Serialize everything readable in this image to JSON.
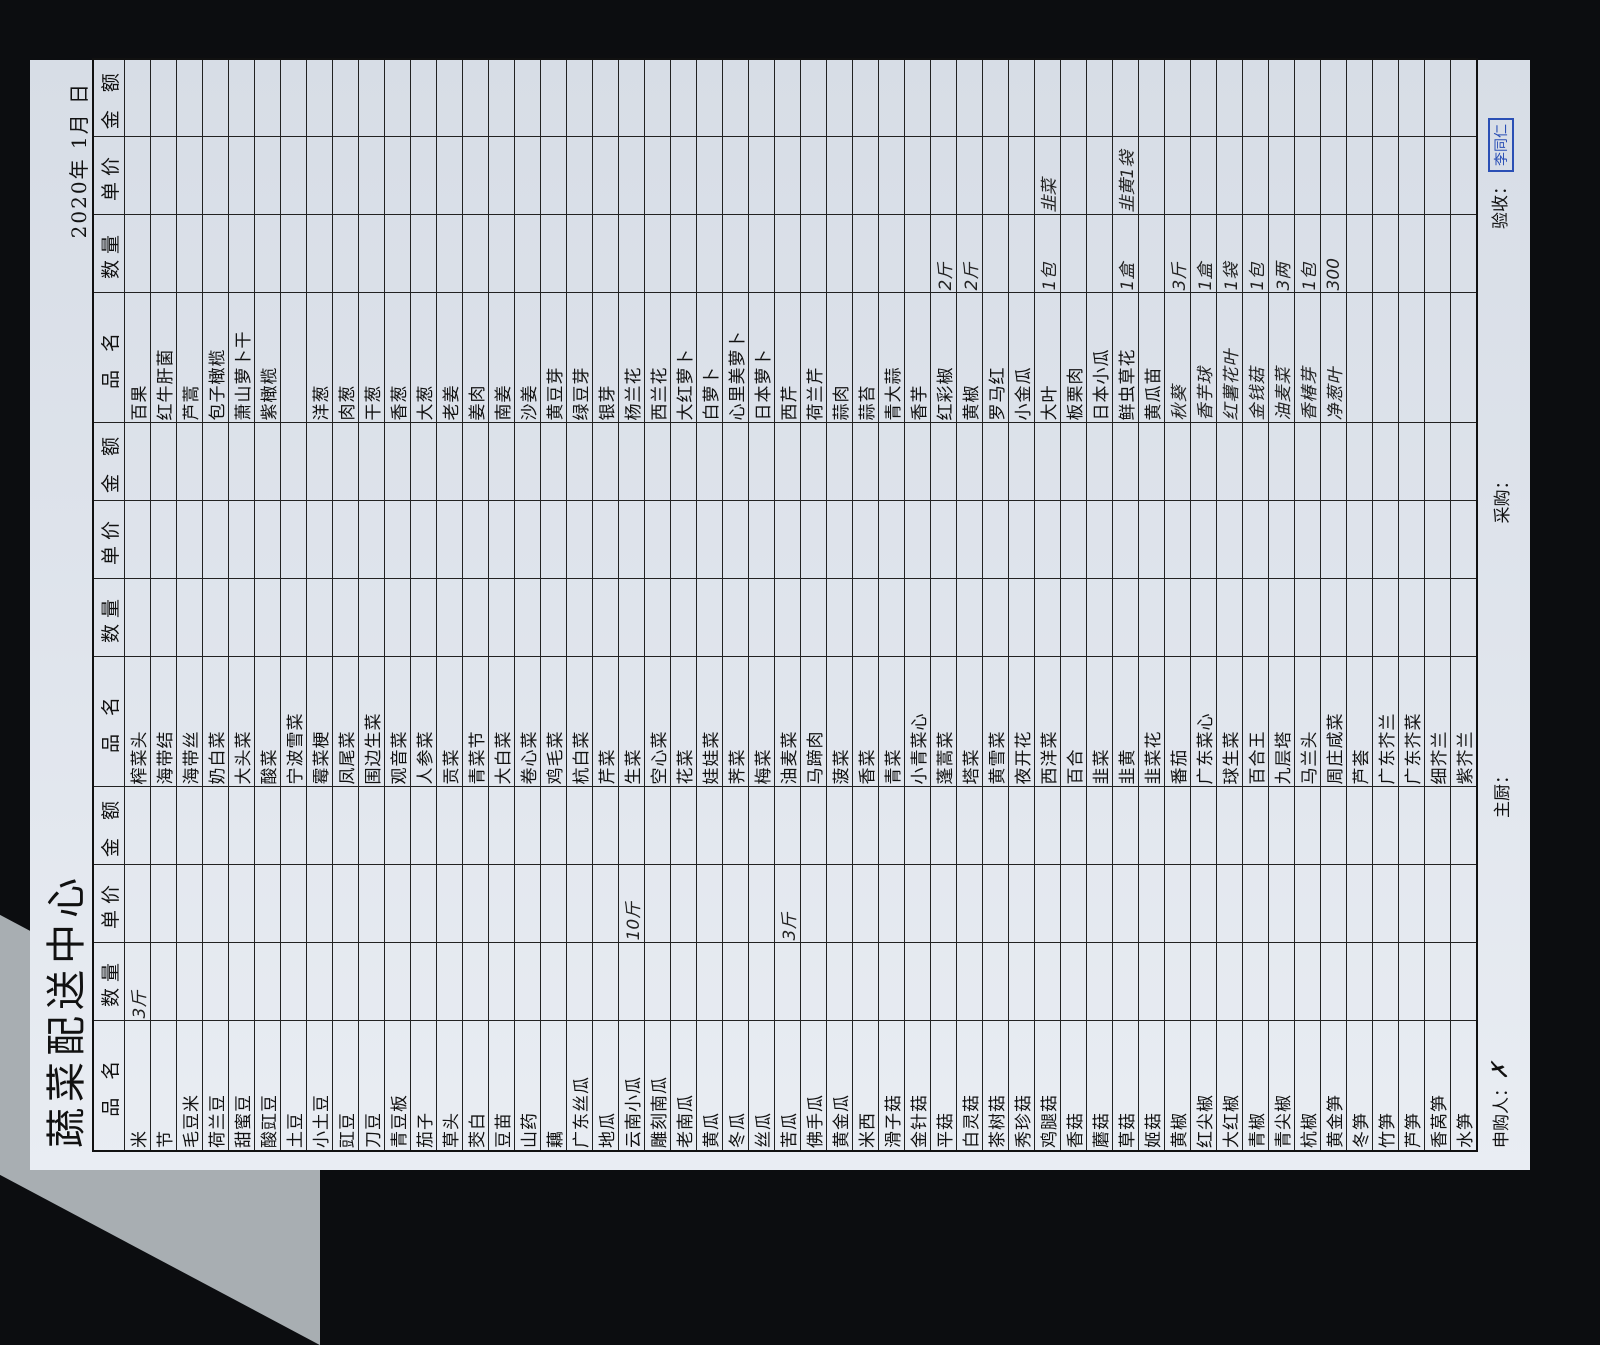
{
  "form": {
    "title": "蔬菜配送中心",
    "date": "2020年 1月 日",
    "headers": [
      "品 名",
      "数量",
      "单价",
      "金 额",
      "品 名",
      "数量",
      "单价",
      "金 额",
      "品 名",
      "数量",
      "单价",
      "金 额"
    ],
    "groups": [
      [
        {
          "name": "米",
          "qty": "3斤"
        },
        {
          "name": "节"
        },
        {
          "name": "毛豆米"
        },
        {
          "name": "荷兰豆"
        },
        {
          "name": "甜蜜豆"
        },
        {
          "name": "酸豇豆"
        },
        {
          "name": "土豆"
        },
        {
          "name": "小土豆"
        },
        {
          "name": "豇豆"
        },
        {
          "name": "刀豆"
        },
        {
          "name": "青豆板"
        },
        {
          "name": "茄子"
        },
        {
          "name": "草头"
        },
        {
          "name": "茭白"
        },
        {
          "name": "豆苗"
        },
        {
          "name": "山药"
        },
        {
          "name": "藕"
        },
        {
          "name": "广东丝瓜"
        },
        {
          "name": "地瓜"
        },
        {
          "name": "云南小瓜",
          "price": "10斤"
        },
        {
          "name": "雕刻南瓜"
        },
        {
          "name": "老南瓜"
        },
        {
          "name": "黄瓜"
        },
        {
          "name": "冬瓜"
        },
        {
          "name": "丝瓜"
        },
        {
          "name": "苦瓜",
          "price": "3斤"
        },
        {
          "name": "佛手瓜"
        },
        {
          "name": "黄金瓜"
        },
        {
          "name": "米西"
        },
        {
          "name": "滑子菇"
        },
        {
          "name": "金针菇"
        },
        {
          "name": "平菇"
        },
        {
          "name": "白灵菇"
        },
        {
          "name": "茶树菇"
        },
        {
          "name": "秀珍菇"
        },
        {
          "name": "鸡腿菇"
        },
        {
          "name": "香菇"
        },
        {
          "name": "蘑菇"
        },
        {
          "name": "草菇"
        },
        {
          "name": "姬菇"
        },
        {
          "name": "黄椒"
        },
        {
          "name": "红尖椒"
        },
        {
          "name": "大红椒"
        },
        {
          "name": "青椒"
        },
        {
          "name": "青尖椒"
        },
        {
          "name": "杭椒"
        },
        {
          "name": "黄金笋"
        },
        {
          "name": "冬笋"
        },
        {
          "name": "竹笋"
        },
        {
          "name": "芦笋"
        },
        {
          "name": "香莴笋"
        },
        {
          "name": "水笋"
        }
      ],
      [
        {
          "name": "榨菜头"
        },
        {
          "name": "海带结"
        },
        {
          "name": "海带丝"
        },
        {
          "name": "奶白菜"
        },
        {
          "name": "大头菜"
        },
        {
          "name": "酸菜"
        },
        {
          "name": "宁波雪菜"
        },
        {
          "name": "霉菜梗"
        },
        {
          "name": "凤尾菜"
        },
        {
          "name": "围边生菜"
        },
        {
          "name": "观音菜"
        },
        {
          "name": "人参菜"
        },
        {
          "name": "贡菜"
        },
        {
          "name": "青菜节"
        },
        {
          "name": "大白菜"
        },
        {
          "name": "卷心菜"
        },
        {
          "name": "鸡毛菜"
        },
        {
          "name": "杭白菜"
        },
        {
          "name": "芹菜"
        },
        {
          "name": "生菜"
        },
        {
          "name": "空心菜"
        },
        {
          "name": "花菜"
        },
        {
          "name": "娃娃菜"
        },
        {
          "name": "荠菜"
        },
        {
          "name": "梅菜"
        },
        {
          "name": "油麦菜"
        },
        {
          "name": "马蹄肉"
        },
        {
          "name": "菠菜"
        },
        {
          "name": "香菜"
        },
        {
          "name": "青菜"
        },
        {
          "name": "小青菜心"
        },
        {
          "name": "蓬蒿菜"
        },
        {
          "name": "塔菜"
        },
        {
          "name": "黄雪菜"
        },
        {
          "name": "夜开花"
        },
        {
          "name": "西洋菜"
        },
        {
          "name": "百合"
        },
        {
          "name": "韭菜"
        },
        {
          "name": "韭黄"
        },
        {
          "name": "韭菜花"
        },
        {
          "name": "番茄"
        },
        {
          "name": "广东菜心"
        },
        {
          "name": "球生菜"
        },
        {
          "name": "百合王"
        },
        {
          "name": "九层塔"
        },
        {
          "name": "马兰头"
        },
        {
          "name": "周庄咸菜"
        },
        {
          "name": "芦荟"
        },
        {
          "name": "广东芥兰"
        },
        {
          "name": "广东芥菜"
        },
        {
          "name": "细芥兰"
        },
        {
          "name": "紫芥兰"
        }
      ],
      [
        {
          "name": "百果"
        },
        {
          "name": "红牛肝菌"
        },
        {
          "name": "芦蒿"
        },
        {
          "name": "包子橄榄"
        },
        {
          "name": "萧山萝卜干"
        },
        {
          "name": "紫橄榄"
        },
        {
          "name": ""
        },
        {
          "name": "洋葱"
        },
        {
          "name": "肉葱"
        },
        {
          "name": "干葱"
        },
        {
          "name": "香葱"
        },
        {
          "name": "大葱"
        },
        {
          "name": "老姜"
        },
        {
          "name": "姜肉"
        },
        {
          "name": "南姜"
        },
        {
          "name": "沙姜"
        },
        {
          "name": "黄豆芽"
        },
        {
          "name": "绿豆芽"
        },
        {
          "name": "银芽"
        },
        {
          "name": "杨兰花"
        },
        {
          "name": "西兰花"
        },
        {
          "name": "大红萝卜"
        },
        {
          "name": "白萝卜"
        },
        {
          "name": "心里美萝卜"
        },
        {
          "name": "日本萝卜"
        },
        {
          "name": "西芹"
        },
        {
          "name": "荷兰芹"
        },
        {
          "name": "蒜肉"
        },
        {
          "name": "蒜苔"
        },
        {
          "name": "青大蒜"
        },
        {
          "name": "香芋"
        },
        {
          "name": "红彩椒",
          "qty": "2斤"
        },
        {
          "name": "黄椒",
          "qty": "2斤"
        },
        {
          "name": "罗马红"
        },
        {
          "name": "小金瓜"
        },
        {
          "name": "大叶",
          "qty": "1包",
          "price": "韭菜"
        },
        {
          "name": "板栗肉"
        },
        {
          "name": "日本小瓜"
        },
        {
          "name": "鲜虫草花",
          "qty": "1盒",
          "price": "韭黄1袋"
        },
        {
          "name": "黄瓜苗"
        },
        {
          "name": "秋葵",
          "qty": "3斤",
          "hand": true
        },
        {
          "name": "香芋球",
          "qty": "1盒",
          "hand": true
        },
        {
          "name": "红薯花叶",
          "qty": "1袋",
          "hand": true
        },
        {
          "name": "金钱菇",
          "qty": "1包",
          "hand": true
        },
        {
          "name": "油麦菜",
          "qty": "3两",
          "hand": true
        },
        {
          "name": "香椿芽",
          "qty": "1包",
          "hand": true
        },
        {
          "name": "净葱叶",
          "qty": "300",
          "hand": true
        },
        {
          "name": ""
        },
        {
          "name": ""
        },
        {
          "name": ""
        },
        {
          "name": ""
        },
        {
          "name": ""
        }
      ]
    ]
  },
  "footer": {
    "requester_label": "申购人：",
    "chef_label": "主厨：",
    "purchaser_label": "采购：",
    "inspector_label": "验收：",
    "stamp": "李同仁"
  },
  "colors": {
    "paper": "#dfe4ec",
    "ink": "#111111",
    "stamp": "#2a4fb5"
  }
}
